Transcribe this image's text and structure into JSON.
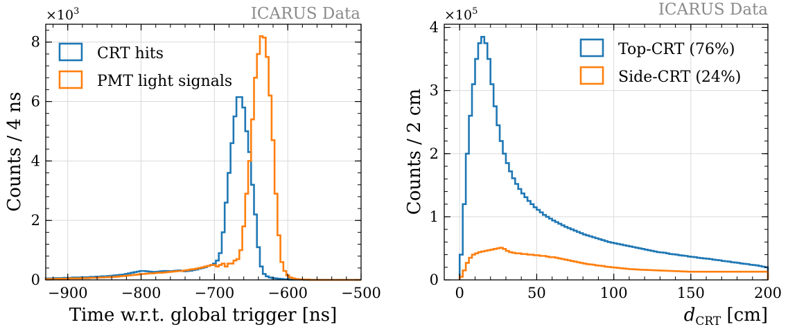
{
  "colors": {
    "blue": "#1f77b4",
    "orange": "#ff7f0e",
    "watermark": "#8a8a8a",
    "grid": "#d9d9d9"
  },
  "chart_data": [
    {
      "type": "histogram",
      "watermark": "ICARUS Data",
      "multiplier_base": "×10",
      "multiplier_exp": "3",
      "xlabel": "Time w.r.t. global trigger [ns]",
      "ylabel": "Counts / 4 ns",
      "xlim": [
        -930,
        -500
      ],
      "ylim": [
        0,
        8.6
      ],
      "xticks": [
        -900,
        -800,
        -700,
        -600,
        -500
      ],
      "xtick_labels": [
        "−900",
        "−800",
        "−700",
        "−600",
        "−500"
      ],
      "yticks": [
        0,
        2,
        4,
        6,
        8
      ],
      "ytick_labels": [
        "0",
        "2",
        "4",
        "6",
        "8"
      ],
      "grid": true,
      "legend_position": "top-left",
      "bin_width": 4,
      "x_start": -930,
      "series": [
        {
          "name": "CRT hits",
          "color": "#1f77b4",
          "values": [
            0.05,
            0.05,
            0.05,
            0.06,
            0.06,
            0.06,
            0.07,
            0.07,
            0.07,
            0.08,
            0.08,
            0.08,
            0.09,
            0.09,
            0.09,
            0.1,
            0.1,
            0.11,
            0.11,
            0.12,
            0.12,
            0.13,
            0.14,
            0.15,
            0.16,
            0.17,
            0.18,
            0.2,
            0.22,
            0.24,
            0.26,
            0.28,
            0.3,
            0.3,
            0.29,
            0.28,
            0.27,
            0.27,
            0.28,
            0.29,
            0.3,
            0.3,
            0.29,
            0.3,
            0.31,
            0.32,
            0.3,
            0.29,
            0.3,
            0.31,
            0.33,
            0.35,
            0.38,
            0.4,
            0.43,
            0.47,
            0.5,
            0.55,
            0.65,
            0.9,
            1.6,
            2.6,
            3.6,
            4.6,
            5.5,
            6.15,
            6.15,
            5.8,
            5.0,
            4.3,
            3.2,
            2.2,
            1.1,
            0.45,
            0.2,
            0.12,
            0.08,
            0.06,
            0.05,
            0.04,
            0.03,
            0.02,
            0.02,
            0.01,
            0.01,
            0.01,
            0.01,
            0.01,
            0.0,
            0.0,
            0.0,
            0.0,
            0.0,
            0.0,
            0.0,
            0.0,
            0.0,
            0.0,
            0.0,
            0.0,
            0.0,
            0.0,
            0.0,
            0.0,
            0.0,
            0.0,
            0.0,
            0.0
          ]
        },
        {
          "name": "PMT light signals",
          "color": "#ff7f0e",
          "values": [
            0.03,
            0.03,
            0.03,
            0.03,
            0.04,
            0.04,
            0.04,
            0.04,
            0.05,
            0.05,
            0.05,
            0.05,
            0.06,
            0.06,
            0.06,
            0.07,
            0.07,
            0.07,
            0.08,
            0.08,
            0.09,
            0.09,
            0.1,
            0.1,
            0.11,
            0.12,
            0.13,
            0.14,
            0.15,
            0.16,
            0.17,
            0.18,
            0.2,
            0.2,
            0.21,
            0.22,
            0.22,
            0.23,
            0.24,
            0.24,
            0.25,
            0.26,
            0.27,
            0.28,
            0.29,
            0.3,
            0.3,
            0.32,
            0.33,
            0.35,
            0.36,
            0.38,
            0.4,
            0.42,
            0.45,
            0.47,
            0.5,
            0.5,
            0.45,
            0.5,
            0.55,
            0.45,
            0.55,
            0.55,
            0.65,
            0.7,
            1.0,
            1.8,
            2.9,
            4.0,
            5.4,
            6.8,
            7.6,
            8.2,
            8.15,
            7.5,
            6.2,
            4.7,
            2.9,
            1.5,
            0.6,
            0.3,
            0.15,
            0.08,
            0.05,
            0.03,
            0.02,
            0.01,
            0.01,
            0.01,
            0.0,
            0.0,
            0.0,
            0.0,
            0.0,
            0.0,
            0.0,
            0.0,
            0.0,
            0.0,
            0.0,
            0.0,
            0.0,
            0.0,
            0.0,
            0.0,
            0.0,
            0.0
          ]
        }
      ]
    },
    {
      "type": "histogram",
      "watermark": "ICARUS Data",
      "multiplier_base": "×10",
      "multiplier_exp": "5",
      "xlabel_main": "d",
      "xlabel_sub": "CRT",
      "xlabel_unit": " [cm]",
      "ylabel": "Counts / 2 cm",
      "xlim": [
        -10,
        200
      ],
      "ylim": [
        0,
        4.05
      ],
      "xticks": [
        0,
        50,
        100,
        150,
        200
      ],
      "xtick_labels": [
        "0",
        "50",
        "100",
        "150",
        "200"
      ],
      "yticks": [
        0,
        1,
        2,
        3,
        4
      ],
      "ytick_labels": [
        "0",
        "1",
        "2",
        "3",
        "4"
      ],
      "grid": true,
      "legend_position": "top-right",
      "bin_width": 2,
      "x_start": 0,
      "series": [
        {
          "name": "Top-CRT (76%)",
          "color": "#1f77b4",
          "values": [
            0.4,
            1.2,
            2.0,
            2.6,
            3.1,
            3.5,
            3.75,
            3.85,
            3.75,
            3.5,
            3.1,
            2.75,
            2.45,
            2.2,
            2.0,
            1.85,
            1.72,
            1.61,
            1.52,
            1.44,
            1.37,
            1.31,
            1.25,
            1.2,
            1.15,
            1.11,
            1.07,
            1.03,
            1.0,
            0.97,
            0.94,
            0.915,
            0.89,
            0.865,
            0.84,
            0.82,
            0.8,
            0.78,
            0.76,
            0.74,
            0.72,
            0.705,
            0.69,
            0.675,
            0.66,
            0.645,
            0.63,
            0.615,
            0.6,
            0.59,
            0.58,
            0.57,
            0.56,
            0.55,
            0.54,
            0.53,
            0.52,
            0.51,
            0.5,
            0.49,
            0.48,
            0.47,
            0.46,
            0.45,
            0.44,
            0.435,
            0.43,
            0.42,
            0.41,
            0.405,
            0.4,
            0.39,
            0.385,
            0.38,
            0.37,
            0.365,
            0.36,
            0.35,
            0.345,
            0.34,
            0.335,
            0.33,
            0.32,
            0.315,
            0.31,
            0.3,
            0.295,
            0.29,
            0.28,
            0.275,
            0.27,
            0.26,
            0.255,
            0.25,
            0.24,
            0.235,
            0.23,
            0.22,
            0.21,
            0.2
          ]
        },
        {
          "name": "Side-CRT (24%)",
          "color": "#ff7f0e",
          "values": [
            0.05,
            0.15,
            0.27,
            0.35,
            0.4,
            0.42,
            0.44,
            0.45,
            0.46,
            0.47,
            0.48,
            0.49,
            0.5,
            0.51,
            0.49,
            0.46,
            0.44,
            0.43,
            0.42,
            0.42,
            0.41,
            0.41,
            0.4,
            0.4,
            0.39,
            0.39,
            0.38,
            0.38,
            0.37,
            0.36,
            0.36,
            0.35,
            0.34,
            0.33,
            0.32,
            0.31,
            0.3,
            0.29,
            0.28,
            0.27,
            0.26,
            0.25,
            0.245,
            0.24,
            0.23,
            0.225,
            0.22,
            0.21,
            0.205,
            0.2,
            0.195,
            0.19,
            0.185,
            0.18,
            0.175,
            0.17,
            0.168,
            0.165,
            0.162,
            0.16,
            0.158,
            0.156,
            0.154,
            0.152,
            0.15,
            0.148,
            0.146,
            0.144,
            0.142,
            0.14,
            0.138,
            0.136,
            0.134,
            0.132,
            0.13,
            0.13,
            0.13,
            0.13,
            0.13,
            0.13,
            0.13,
            0.13,
            0.13,
            0.13,
            0.13,
            0.13,
            0.13,
            0.13,
            0.13,
            0.13,
            0.13,
            0.13,
            0.13,
            0.13,
            0.13,
            0.13,
            0.13,
            0.13,
            0.13,
            0.13
          ]
        }
      ]
    }
  ]
}
